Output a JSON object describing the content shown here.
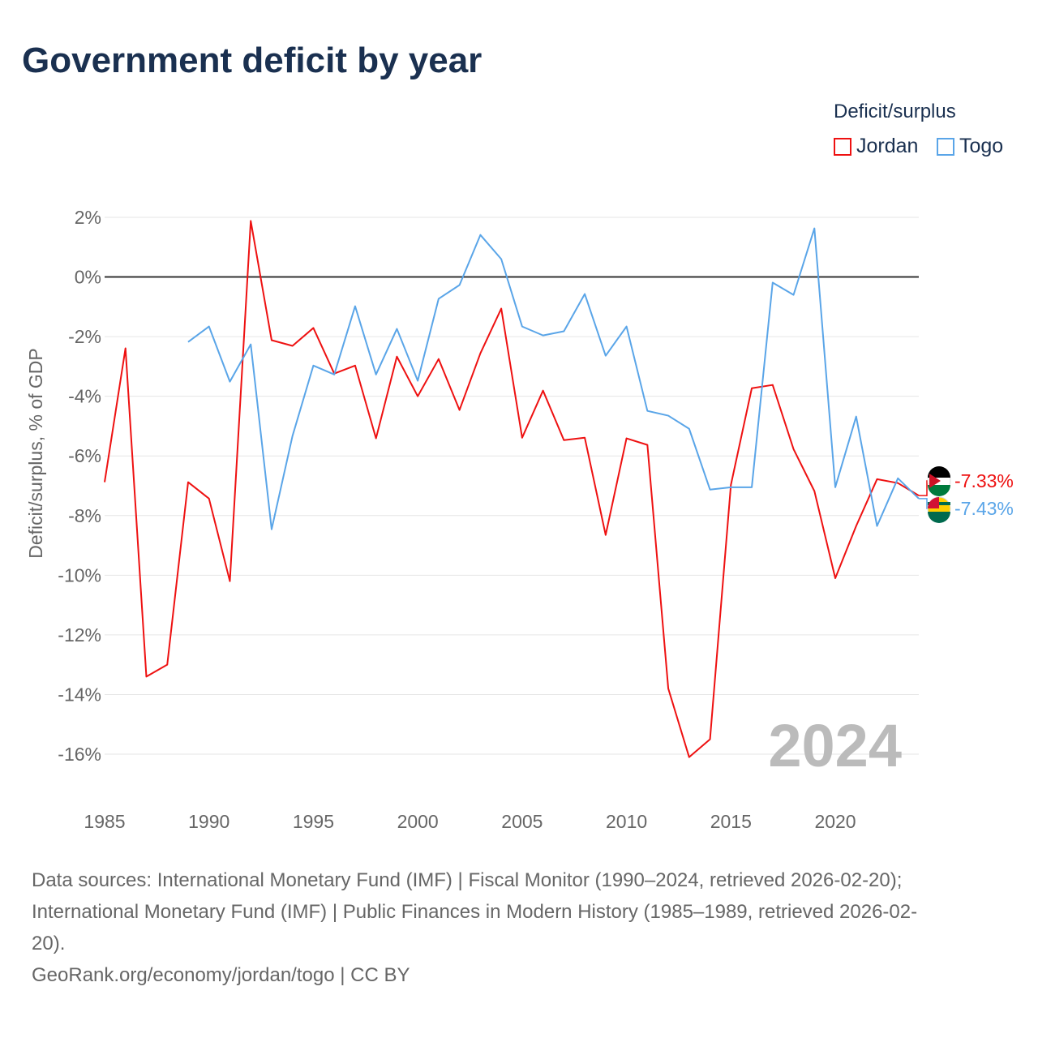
{
  "title": "Government deficit by year",
  "legend": {
    "title": "Deficit/surplus",
    "items": [
      {
        "label": "Jordan",
        "color": "#ee1111"
      },
      {
        "label": "Togo",
        "color": "#5aa5e8"
      }
    ]
  },
  "sources": {
    "line1": "Data sources: International Monetary Fund (IMF) | Fiscal Monitor (1990–2024, retrieved 2026-02-20);",
    "line2": "International Monetary Fund (IMF) | Public Finances in Modern History (1985–1989, retrieved 2026-02-",
    "line3": "20).",
    "line4": "GeoRank.org/economy/jordan/togo | CC BY"
  },
  "chart_data": {
    "type": "line",
    "title": "Government deficit by year",
    "xlabel": "",
    "ylabel": "Deficit/surplus, % of GDP",
    "xlim": [
      1985,
      2024
    ],
    "ylim": [
      -16,
      2
    ],
    "xticks": [
      "1985",
      "1990",
      "1995",
      "2000",
      "2005",
      "2010",
      "2015",
      "2020"
    ],
    "yticks": [
      "2%",
      "0%",
      "-2%",
      "-4%",
      "-6%",
      "-8%",
      "-10%",
      "-12%",
      "-14%",
      "-16%"
    ],
    "year_watermark": "2024",
    "grid": true,
    "legend_position": "top-right",
    "series": [
      {
        "name": "Jordan",
        "color": "#ee1111",
        "start_year": 1985,
        "end_label": "-7.33%",
        "values": [
          -6.88,
          -2.39,
          -13.4,
          -13.0,
          -6.88,
          -7.43,
          -10.2,
          1.88,
          -2.12,
          -2.31,
          -1.71,
          -3.24,
          -2.97,
          -5.41,
          -2.67,
          -4.0,
          -2.75,
          -4.46,
          -2.56,
          -1.06,
          -5.39,
          -3.81,
          -5.47,
          -5.39,
          -8.65,
          -5.41,
          -5.63,
          -13.8,
          -16.1,
          -15.5,
          -6.97,
          -3.73,
          -3.62,
          -5.77,
          -7.18,
          -10.1,
          -8.35,
          -6.78,
          -6.91,
          -7.33
        ]
      },
      {
        "name": "Togo",
        "color": "#5aa5e8",
        "start_year": 1989,
        "end_label": "-7.43%",
        "values": [
          -2.18,
          -1.66,
          -3.51,
          -2.26,
          -8.46,
          -5.33,
          -2.97,
          -3.27,
          -0.98,
          -3.27,
          -1.74,
          -3.48,
          -0.73,
          -0.27,
          1.41,
          0.6,
          -1.66,
          -1.96,
          -1.82,
          -0.57,
          -2.64,
          -1.66,
          -4.49,
          -4.65,
          -5.09,
          -7.13,
          -7.05,
          -7.05,
          -0.19,
          -0.6,
          1.63,
          -7.05,
          -4.68,
          -8.35,
          -6.75,
          -7.43
        ]
      }
    ]
  }
}
